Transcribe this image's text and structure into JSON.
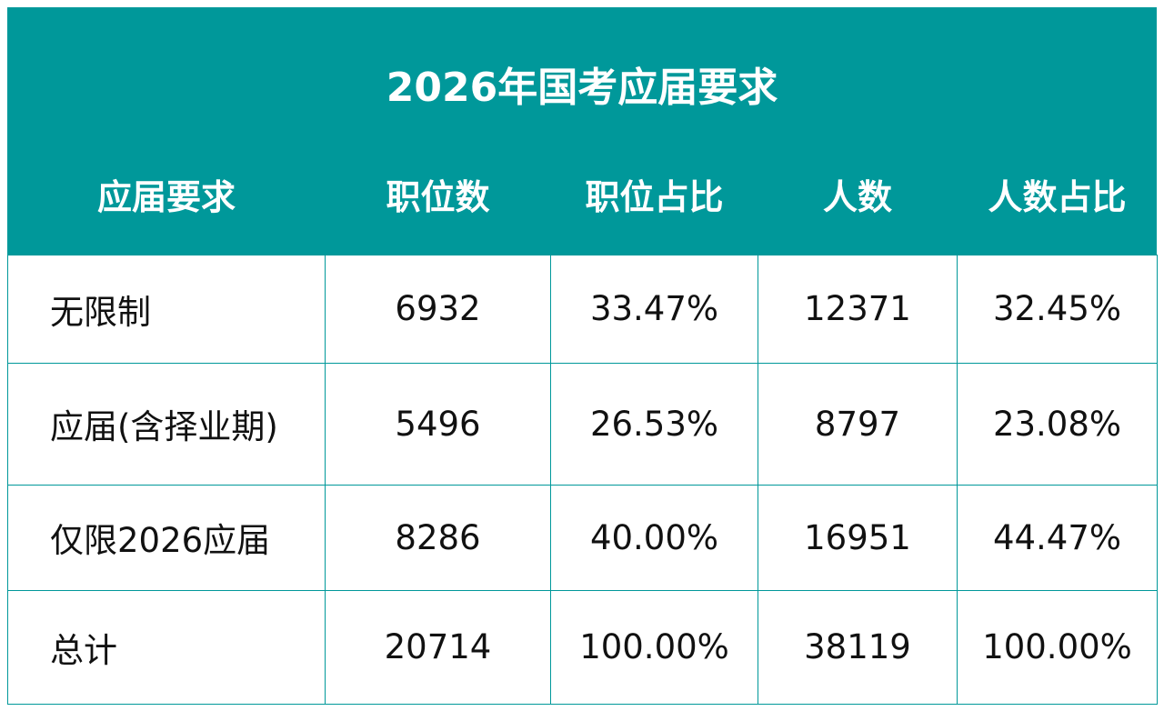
{
  "header": {
    "title": "2026年国考应届要求"
  },
  "table": {
    "columns": [
      "应届要求",
      "职位数",
      "职位占比",
      "人数",
      "人数占比"
    ],
    "rows": [
      [
        "无限制",
        "6932",
        "33.47%",
        "12371",
        "32.45%"
      ],
      [
        "应届(含择业期)",
        "5496",
        "26.53%",
        "8797",
        "23.08%"
      ],
      [
        "仅限2026应届",
        "8286",
        "40.00%",
        "16951",
        "44.47%"
      ],
      [
        "总计",
        "20714",
        "100.00%",
        "38119",
        "100.00%"
      ]
    ]
  }
}
